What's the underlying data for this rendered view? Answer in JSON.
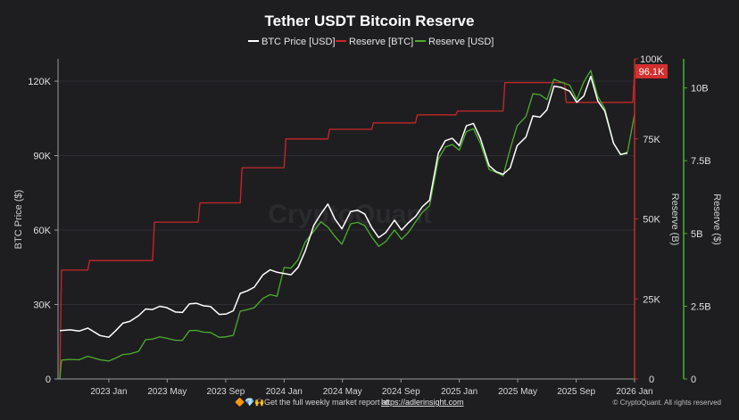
{
  "chart_data": {
    "type": "line",
    "title": "Tether USDT Bitcoin Reserve",
    "legend": [
      {
        "name": "BTC Price [USD]",
        "color": "#ffffff"
      },
      {
        "name": "Reserve [BTC]",
        "color": "#c62828"
      },
      {
        "name": "Reserve [USD]",
        "color": "#4caf2a"
      }
    ],
    "xlabel": "",
    "x_ticks": [
      "2023 Jan",
      "2023 May",
      "2023 Sep",
      "2024 Jan",
      "2024 May",
      "2024 Sep",
      "2025 Jan",
      "2025 May",
      "2025 Sep",
      "2026 Jan"
    ],
    "x_tick_dates": [
      2023.0,
      2023.333,
      2023.667,
      2024.0,
      2024.333,
      2024.667,
      2025.0,
      2025.333,
      2025.667,
      2026.0
    ],
    "xlim": [
      2022.71,
      2026.0
    ],
    "axes": {
      "price": {
        "label": "BTC Price ($)",
        "ticks": [
          0,
          30000,
          60000,
          90000,
          120000
        ],
        "tick_labels": [
          "0",
          "30K",
          "60K",
          "90K",
          "120K"
        ],
        "lim": [
          0,
          129000
        ]
      },
      "btc": {
        "label": "Reserve (B)",
        "ticks": [
          0,
          25000,
          50000,
          75000,
          100000
        ],
        "tick_labels": [
          "0",
          "25K",
          "50K",
          "75K",
          "100K"
        ],
        "lim": [
          0,
          100000
        ]
      },
      "usd": {
        "label": "Reserve ($)",
        "ticks": [
          0,
          2.5,
          5,
          7.5,
          10
        ],
        "tick_labels": [
          "0",
          "2.5B",
          "5B",
          "7.5B",
          "10B"
        ],
        "lim": [
          0,
          11
        ]
      }
    },
    "last_value_label": "96.1K",
    "watermark": "CryptoQuant",
    "series": [
      {
        "name": "BTC Price [USD]",
        "axis": "price",
        "x": [
          2022.72,
          2022.78,
          2022.83,
          2022.88,
          2022.95,
          2023.0,
          2023.04,
          2023.08,
          2023.12,
          2023.17,
          2023.21,
          2023.25,
          2023.29,
          2023.33,
          2023.38,
          2023.42,
          2023.46,
          2023.5,
          2023.54,
          2023.58,
          2023.63,
          2023.67,
          2023.71,
          2023.75,
          2023.79,
          2023.83,
          2023.88,
          2023.92,
          2023.96,
          2024.0,
          2024.04,
          2024.08,
          2024.12,
          2024.17,
          2024.21,
          2024.25,
          2024.29,
          2024.33,
          2024.38,
          2024.42,
          2024.46,
          2024.5,
          2024.54,
          2024.58,
          2024.63,
          2024.67,
          2024.71,
          2024.75,
          2024.79,
          2024.83,
          2024.88,
          2024.92,
          2024.96,
          2025.0,
          2025.04,
          2025.08,
          2025.12,
          2025.17,
          2025.21,
          2025.25,
          2025.29,
          2025.33,
          2025.38,
          2025.42,
          2025.46,
          2025.5,
          2025.54,
          2025.58,
          2025.63,
          2025.67,
          2025.71,
          2025.75,
          2025.79,
          2025.83,
          2025.88,
          2025.92,
          2025.96
        ],
        "values": [
          19500,
          19800,
          19300,
          20500,
          17500,
          16800,
          19500,
          22500,
          23200,
          25500,
          28200,
          28000,
          29300,
          28800,
          27000,
          26800,
          30300,
          30500,
          29500,
          29200,
          26000,
          26200,
          27500,
          34500,
          35500,
          37000,
          42000,
          44000,
          43000,
          42500,
          42000,
          45000,
          51500,
          62000,
          66500,
          70500,
          64500,
          60500,
          67500,
          68000,
          66500,
          61000,
          57000,
          59000,
          64000,
          60000,
          63000,
          65500,
          69500,
          72000,
          91000,
          96000,
          97000,
          94000,
          102000,
          103000,
          97000,
          86000,
          83500,
          82500,
          85000,
          94000,
          97500,
          106000,
          105500,
          108500,
          118000,
          117500,
          116000,
          111500,
          114000,
          122000,
          112000,
          108000,
          95000,
          90500,
          91000
        ]
      },
      {
        "name": "Reserve [BTC]",
        "axis": "btc",
        "x": [
          2022.72,
          2022.73,
          2022.88,
          2022.89,
          2023.25,
          2023.26,
          2023.51,
          2023.52,
          2023.75,
          2023.76,
          2024.0,
          2024.01,
          2024.25,
          2024.26,
          2024.5,
          2024.51,
          2024.75,
          2024.76,
          2024.98,
          2024.99,
          2025.25,
          2025.26,
          2025.42,
          2025.43,
          2025.6,
          2025.61,
          2025.99,
          2026.0
        ],
        "values": [
          0,
          34000,
          34000,
          37000,
          37000,
          49000,
          49000,
          55000,
          55000,
          66000,
          66000,
          75000,
          75000,
          78000,
          78000,
          80000,
          80000,
          82500,
          82500,
          83700,
          83700,
          92600,
          92600,
          92600,
          92600,
          86400,
          86400,
          96100
        ]
      },
      {
        "name": "Reserve [USD]",
        "axis": "usd",
        "x": [
          2022.72,
          2022.73,
          2022.78,
          2022.83,
          2022.88,
          2022.95,
          2023.0,
          2023.04,
          2023.08,
          2023.12,
          2023.17,
          2023.21,
          2023.25,
          2023.29,
          2023.33,
          2023.38,
          2023.42,
          2023.46,
          2023.5,
          2023.54,
          2023.58,
          2023.63,
          2023.67,
          2023.71,
          2023.75,
          2023.79,
          2023.83,
          2023.88,
          2023.92,
          2023.96,
          2024.0,
          2024.04,
          2024.08,
          2024.12,
          2024.17,
          2024.21,
          2024.25,
          2024.29,
          2024.33,
          2024.38,
          2024.42,
          2024.46,
          2024.5,
          2024.54,
          2024.58,
          2024.63,
          2024.67,
          2024.71,
          2024.75,
          2024.79,
          2024.83,
          2024.88,
          2024.92,
          2024.96,
          2025.0,
          2025.04,
          2025.08,
          2025.12,
          2025.17,
          2025.21,
          2025.25,
          2025.29,
          2025.33,
          2025.38,
          2025.42,
          2025.46,
          2025.5,
          2025.54,
          2025.58,
          2025.63,
          2025.67,
          2025.71,
          2025.75,
          2025.79,
          2025.83,
          2025.88,
          2025.92,
          2025.96,
          2026.0
        ],
        "values": [
          0,
          0.65,
          0.67,
          0.66,
          0.78,
          0.66,
          0.62,
          0.72,
          0.84,
          0.86,
          0.95,
          1.35,
          1.37,
          1.45,
          1.4,
          1.33,
          1.33,
          1.66,
          1.67,
          1.61,
          1.6,
          1.43,
          1.45,
          1.5,
          2.33,
          2.38,
          2.45,
          2.77,
          2.9,
          2.84,
          3.83,
          3.81,
          4.1,
          4.7,
          5.08,
          5.4,
          5.22,
          4.9,
          4.63,
          5.33,
          5.38,
          5.27,
          4.88,
          4.56,
          4.72,
          5.12,
          4.8,
          5.04,
          5.4,
          5.73,
          5.95,
          7.55,
          7.97,
          8.06,
          7.86,
          8.5,
          8.6,
          8.1,
          7.2,
          7.1,
          6.98,
          7.9,
          8.7,
          9.02,
          9.8,
          9.77,
          9.6,
          10.3,
          10.2,
          10.1,
          9.6,
          10.2,
          10.6,
          9.7,
          9.3,
          8.1,
          7.7,
          7.8,
          9.1
        ]
      }
    ]
  },
  "footer": {
    "emoji": "🔶💎🙌",
    "promo_text": "Get the full weekly market report at",
    "promo_link": "https://adlerinsight.com",
    "copyright": "© CryptoQuant. All rights reserved"
  }
}
